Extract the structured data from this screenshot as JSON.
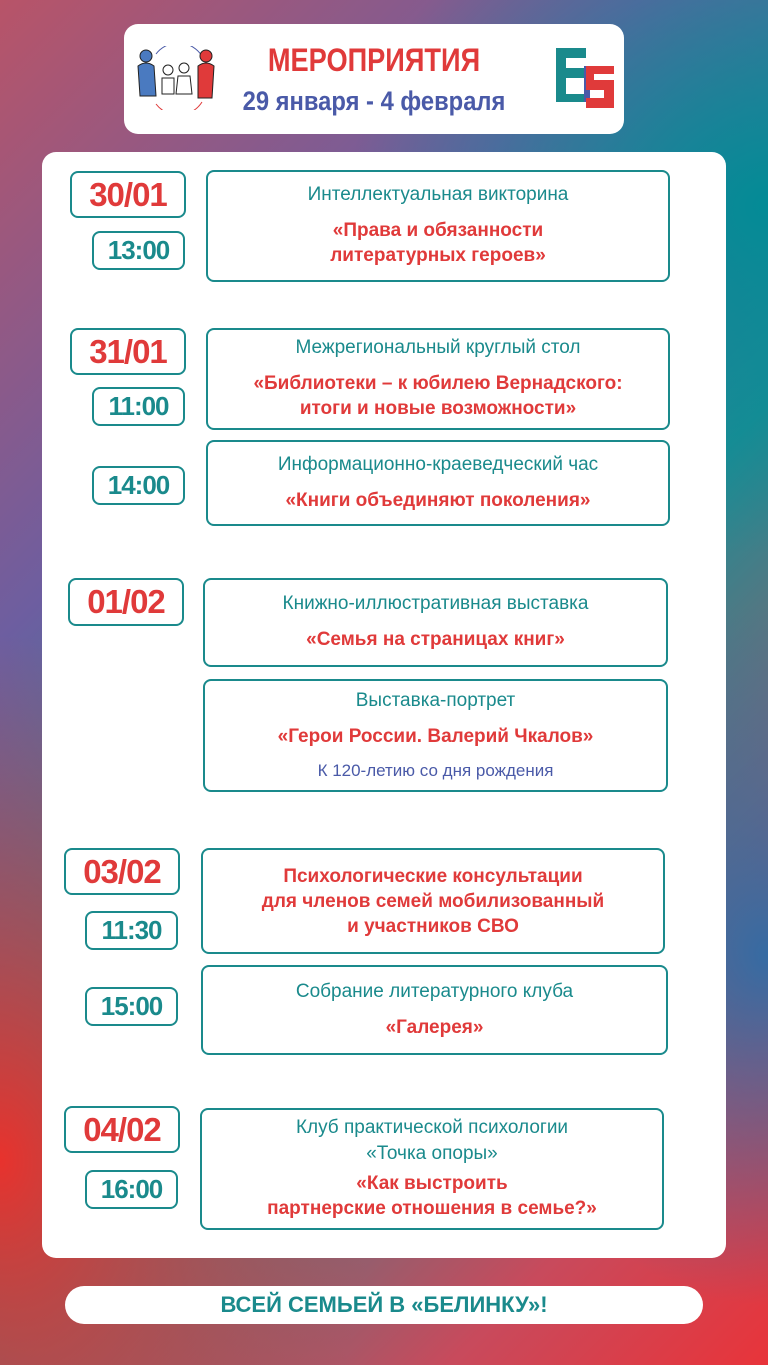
{
  "header": {
    "title": "МЕРОПРИЯТИЯ",
    "dates": "29 января - 4 февраля",
    "logo_left": "family-logo",
    "logo_right": "Б Б"
  },
  "colors": {
    "teal": "#1a8a8c",
    "red": "#e03a3a",
    "blue": "#4a5aa8"
  },
  "events": [
    {
      "date": "30/01",
      "time": "13:00",
      "type": "Интеллектуальная викторина",
      "name1": "«Права и обязанности",
      "name2": "литературных героев»"
    },
    {
      "date": "31/01",
      "time": "11:00",
      "type": "Межрегиональный круглый стол",
      "name1": "«Библиотеки – к юбилею Вернадского:",
      "name2": "итоги и новые возможности»"
    },
    {
      "time": "14:00",
      "type": "Информационно-краеведческий час",
      "name1": "«Книги объединяют поколения»"
    },
    {
      "date": "01/02",
      "type": "Книжно-иллюстративная выставка",
      "name1": "«Семья на страницах книг»"
    },
    {
      "type": "Выставка-портрет",
      "name1": "«Герои России. Валерий Чкалов»",
      "note": "К 120-летию со дня рождения"
    },
    {
      "date": "03/02",
      "time": "11:30",
      "name1": "Психологические консультации",
      "name2": "для членов семей мобилизованный",
      "name3": "и участников СВО"
    },
    {
      "time": "15:00",
      "type": "Собрание литературного клуба",
      "name1": "«Галерея»"
    },
    {
      "date": "04/02",
      "time": "16:00",
      "type": "Клуб практической психологии",
      "type2": "«Точка опоры»",
      "name1": "«Как выстроить",
      "name2": "партнерские отношения в семье?»"
    }
  ],
  "footer": "ВСЕЙ СЕМЬЕЙ В «БЕЛИНКУ»!"
}
